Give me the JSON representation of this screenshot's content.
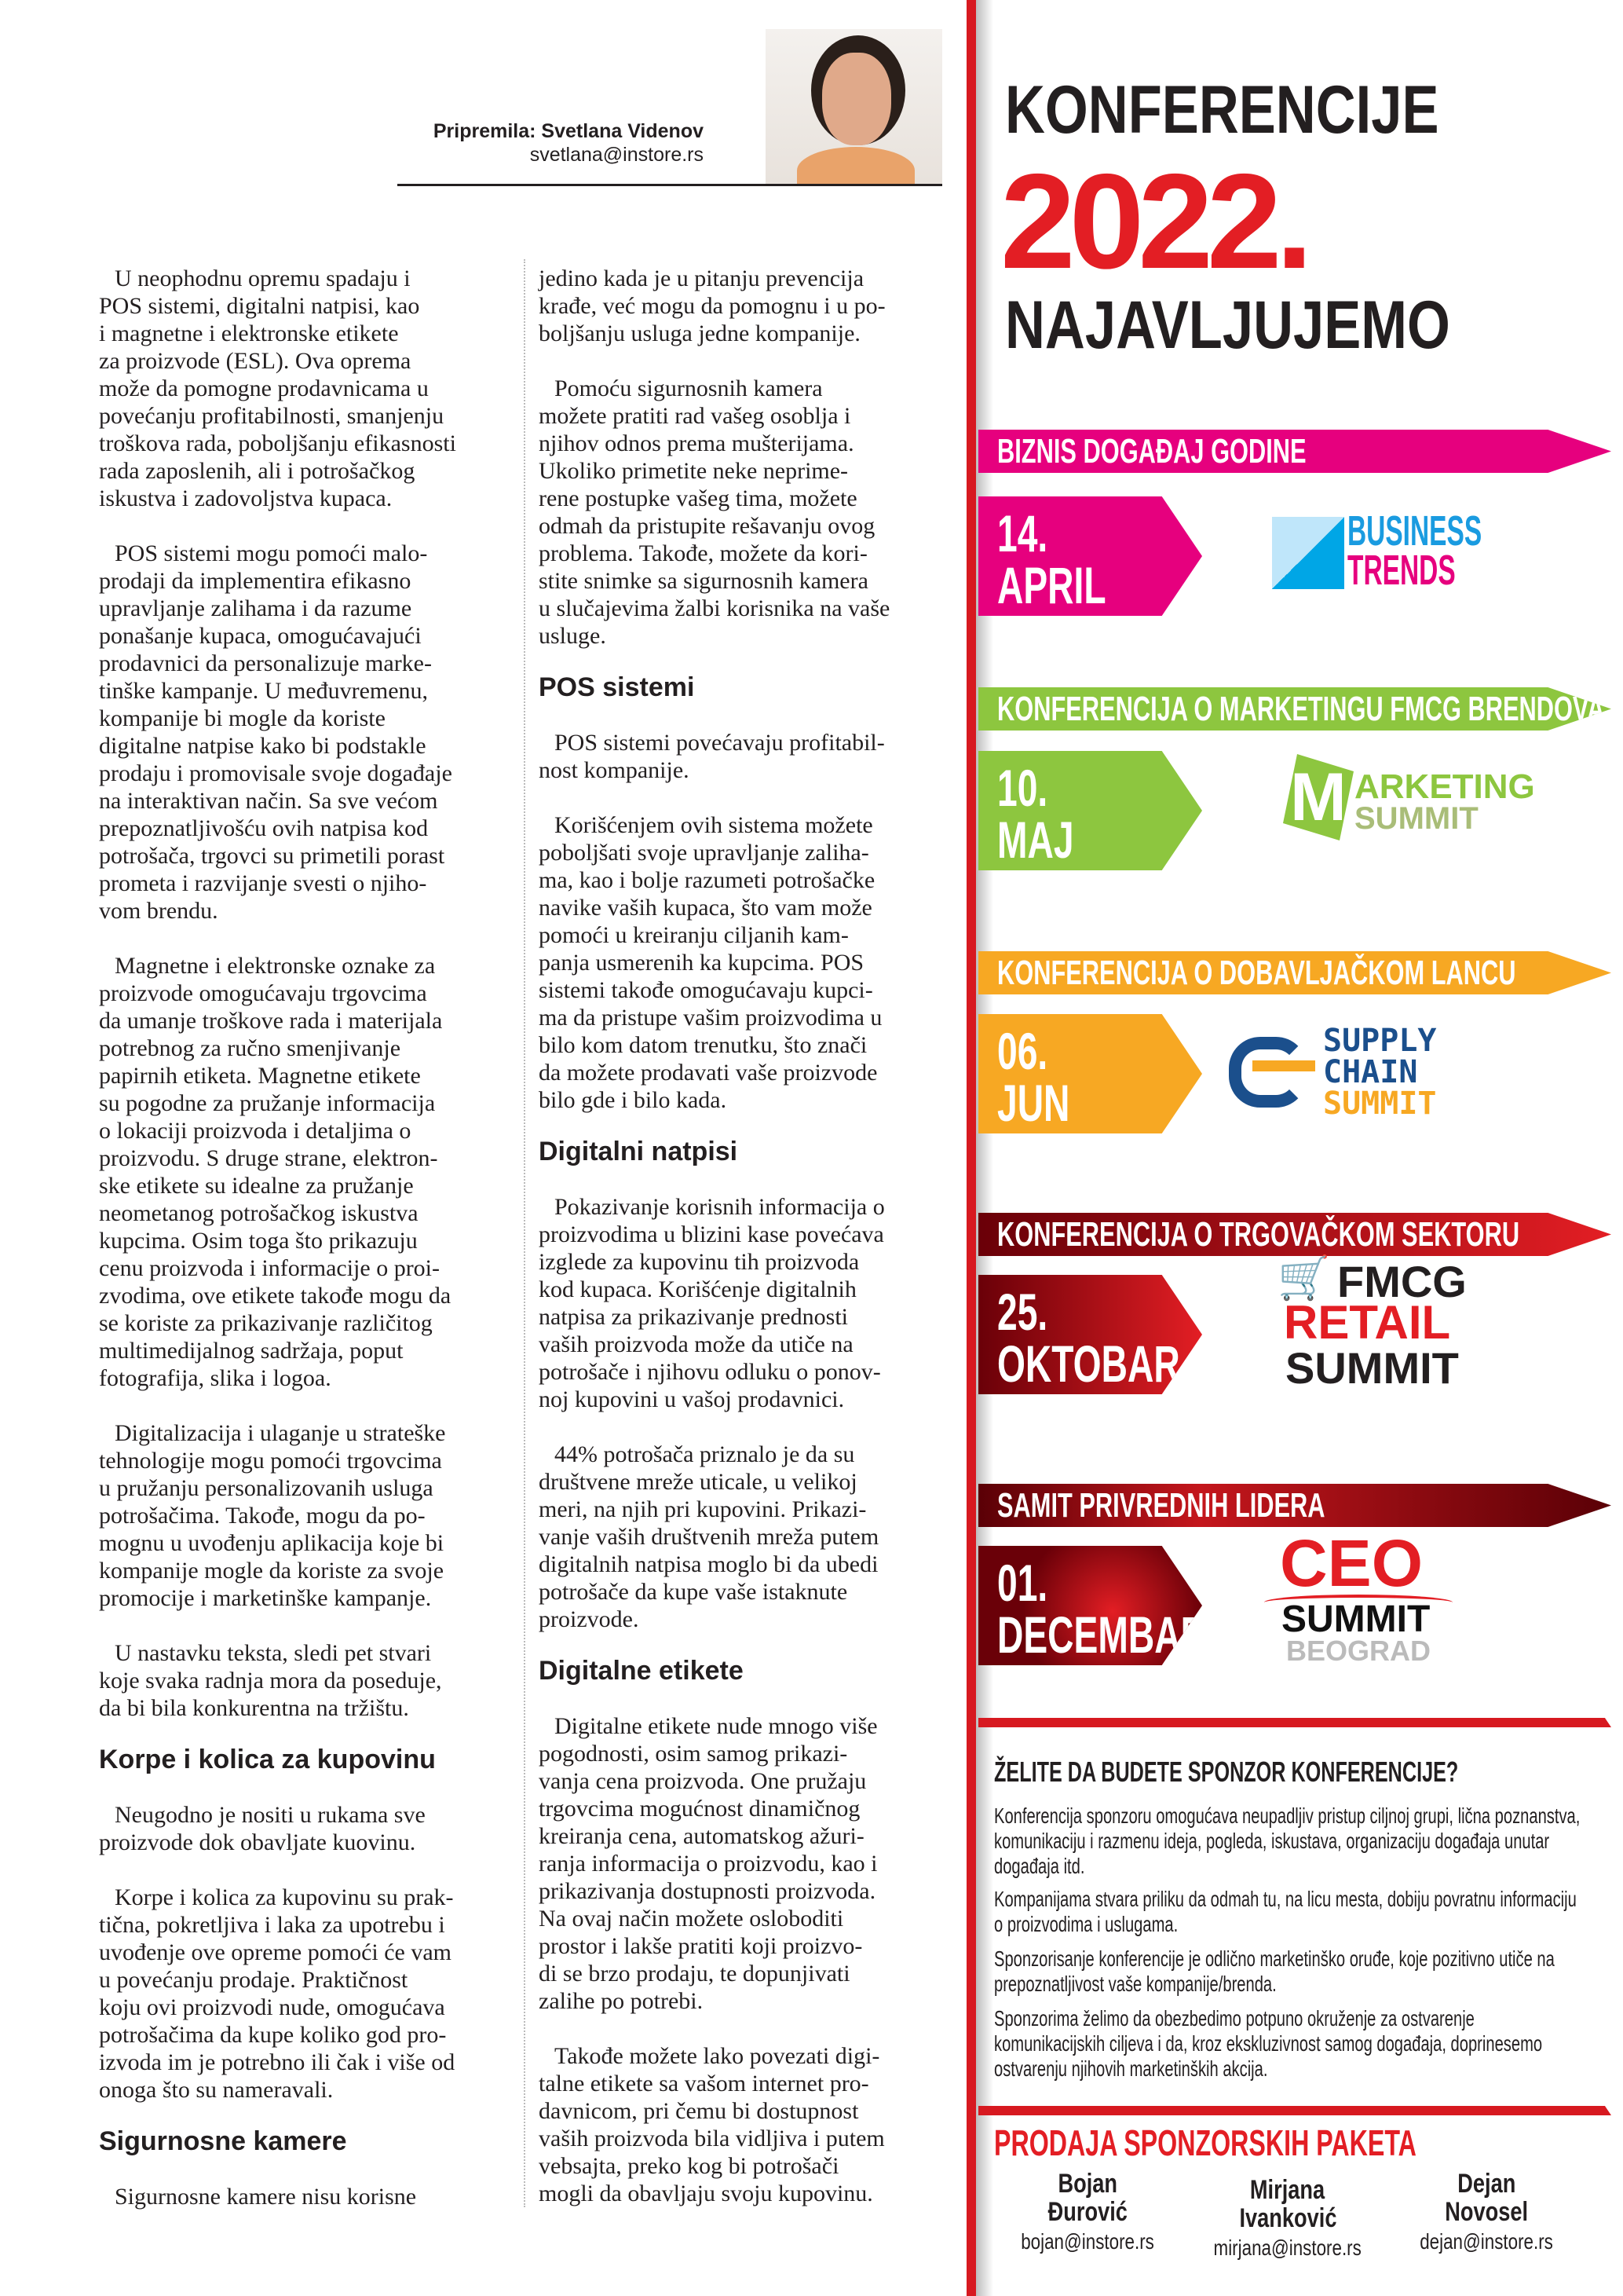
{
  "author": {
    "label": "Pripremila: Svetlana Videnov",
    "email": "svetlana@instore.rs"
  },
  "article": {
    "col1": [
      {
        "type": "p",
        "text": "U neophodnu opremu spadaju i\nPOS sistemi, digitalni natpisi, kao\ni magnetne i elektronske etikete\nza proizvode (ESL). Ova oprema\nmože da pomogne prodavnicama u\npovećanju profitabilnosti, smanjenju\ntroškova rada, poboljšanju efikasnosti\nrada zaposlenih, ali i potrošačkog\niskustva i zadovoljstva kupaca."
      },
      {
        "type": "p",
        "text": "POS sistemi mogu pomoći malo-\nprodaji da implementira efikasno\nupravljanje zalihama i da razume\nponašanje kupaca, omogućavajući\nprodavnici da personalizuje marke-\ntinške kampanje. U međuvremenu,\nkompanije bi mogle da koriste\ndigitalne natpise kako bi podstakle\nprodaju i promovisale svoje događaje\nna interaktivan način. Sa sve većom\nprepoznatljivošću ovih natpisa kod\npotrošača, trgovci su primetili porast\nprometa i razvijanje svesti o njiho-\nvom brendu."
      },
      {
        "type": "p",
        "text": "Magnetne i elektronske oznake za\nproizvode omogućavaju trgovcima\nda umanje troškove rada i materijala\npotrebnog za ručno smenjivanje\npapirnih etiketa. Magnetne etikete\nsu pogodne za pružanje informacija\no lokaciji proizvoda i detaljima o\nproizvodu. S druge strane, elektron-\nske etikete su idealne za pružanje\nneometanog potrošačkog iskustva\nkupcima. Osim toga što prikazuju\ncenu proizvoda i informacije o proi-\nzvodima, ove etikete takođe mogu da\nse koriste za prikazivanje različitog\nmultimedijalnog sadržaja, poput\nfotografija, slika i logoa."
      },
      {
        "type": "p",
        "text": "Digitalizacija i ulaganje u strateške\ntehnologije mogu pomoći trgovcima\nu pružanju personalizovanih usluga\npotrošačima. Takođe, mogu da po-\nmognu u uvođenju aplikacija koje bi\nkompanije mogle da koriste za svoje\npromocije i marketinške kampanje."
      },
      {
        "type": "p",
        "text": "U nastavku teksta, sledi pet stvari\nkoje svaka radnja mora da poseduje,\nda bi bila konkurentna na tržištu."
      },
      {
        "type": "h",
        "text": "Korpe i kolica za kupovinu"
      },
      {
        "type": "p",
        "text": "Neugodno je nositi u rukama sve\nproizvode dok obavljate kuovinu."
      },
      {
        "type": "p",
        "text": "Korpe i kolica za kupovinu su prak-\ntična, pokretljiva i laka za upotrebu i\nuvođenje ove opreme pomoći će vam\nu povećanju prodaje. Praktičnost\nkoju ovi proizvodi nude, omogućava\npotrošačima da kupe koliko god pro-\nizvoda im je potrebno ili čak i više od\nonoga što su nameravali."
      },
      {
        "type": "h",
        "text": "Sigurnosne kamere"
      },
      {
        "type": "p",
        "text": "Sigurnosne kamere nisu korisne"
      }
    ],
    "col2": [
      {
        "type": "p",
        "text": "jedino kada je u pitanju prevencija\nkrađe, već mogu da pomognu i u po-\nboljšanju usluga jedne kompanije."
      },
      {
        "type": "p",
        "text": "Pomoću sigurnosnih kamera\nmožete pratiti rad vašeg osoblja i\nnjihov odnos prema mušterijama.\nUkoliko primetite neke neprime-\nrene postupke vašeg tima, možete\nodmah da pristupite rešavanju ovog\nproblema. Takođe, možete da kori-\nstite snimke sa sigurnosnih kamera\nu slučajevima žalbi korisnika na vaše\nusluge."
      },
      {
        "type": "h",
        "text": "POS sistemi"
      },
      {
        "type": "p",
        "text": "POS sistemi povećavaju profitabil-\nnost kompanije."
      },
      {
        "type": "p",
        "text": "Korišćenjem ovih sistema možete\npoboljšati svoje upravljanje zaliha-\nma, kao i bolje razumeti potrošačke\nnavike vaših kupaca, što vam može\npomoći u kreiranju ciljanih kam-\npanja usmerenih ka kupcima. POS\nsistemi takođe omogućavaju kupci-\nma da pristupe vašim proizvodima u\nbilo kom datom trenutku, što znači\nda možete prodavati vaše proizvode\nbilo gde i bilo kada."
      },
      {
        "type": "h",
        "text": "Digitalni natpisi"
      },
      {
        "type": "p",
        "text": "Pokazivanje korisnih informacija o\nproizvodima u blizini kase povećava\nizglede za kupovinu tih proizvoda\nkod kupaca. Korišćenje digitalnih\nnatpisa za prikazivanje prednosti\nvaših proizvoda može da utiče na\npotrošače i njihovu odluku o ponov-\nnoj kupovini u vašoj prodavnici."
      },
      {
        "type": "p",
        "text": "44% potrošača priznalo je da su\ndruštvene mreže uticale, u velikoj\nmeri, na njih pri kupovini. Prikazi-\nvanje vaših društvenih mreža putem\ndigitalnih natpisa moglo bi da ubedi\npotrošače da kupe vaše istaknute\nproizvode."
      },
      {
        "type": "h",
        "text": "Digitalne etikete"
      },
      {
        "type": "p",
        "text": "Digitalne etikete nude mnogo više\npogodnosti, osim samog prikazi-\nvanja cena proizvoda. One pružaju\ntrgovcima mogućnost dinamičnog\nkreiranja cena, automatskog ažuri-\nranja informacija o proizvodu, kao i\nprikazivanja dostupnosti proizvoda.\nNa ovaj način možete osloboditi\nprostor i lakše pratiti koji proizvo-\ndi se brzo prodaju, te dopunjivati\nzalihe po potrebi."
      },
      {
        "type": "p",
        "text": "Takođe možete lako povezati digi-\ntalne etikete sa vašom internet pro-\ndavnicom, pri čemu bi dostupnost\nvaših proizvoda bila vidljiva i putem\nvebsajta, preko kog bi potrošači\nmogli da obavljaju svoju kupovinu."
      }
    ]
  },
  "sidebar": {
    "title1": "KONFERENCIJE",
    "year": "2022.",
    "title2": "NAJAVLJUJEMO",
    "events": [
      {
        "category": "BIZNIS DOGAĐAJ GODINE",
        "day": "14.",
        "month": "APRIL",
        "color": "#e6007e",
        "logo": [
          "BUSINESS",
          "TRENDS"
        ]
      },
      {
        "category": "KONFERENCIJA O MARKETINGU FMCG BRENDOVA",
        "day": "10.",
        "month": "MAJ",
        "color": "#8dc63f",
        "logo": [
          "ARKETING",
          "SUMMIT"
        ]
      },
      {
        "category": "KONFERENCIJA O DOBAVLJAČKOM LANCU",
        "day": "06.",
        "month": "JUN",
        "color": "#f7a823",
        "logo": [
          "SUPPLY",
          "CHAIN",
          "SUMMIT"
        ]
      },
      {
        "category": "KONFERENCIJA O TRGOVAČKOM SEKTORU",
        "day": "25.",
        "month": "OKTOBAR",
        "color": "#d71920",
        "logo": [
          "FMCG",
          "RETAIL",
          "SUMMIT"
        ]
      },
      {
        "category": "SAMIT PRIVREDNIH LIDERA",
        "day": "01.",
        "month": "DECEMBAR",
        "color": "#8b0a12",
        "logo": [
          "CEO",
          "SUMMIT",
          "BEOGRAD"
        ]
      }
    ],
    "sponsor": {
      "heading": "ŽELITE DA BUDETE SPONZOR KONFERENCIJE?",
      "paragraphs": [
        "Konferencija sponzoru omogućava neupadljiv pristup ciljnoj grupi, lična poznanstva,\nkomunikaciju i razmenu ideja, pogleda, iskustava, organizaciju događaja unutar\ndogađaja itd.",
        "Kompanijama stvara priliku da odmah tu, na licu mesta, dobiju povratnu informaciju\no proizvodima i uslugama.",
        "Sponzorisanje konferencije je odlično marketinško oruđe, koje pozitivno utiče na\nprepoznatljivost vaše kompanije/brenda.",
        "Sponzorima želimo da obezbedimo potpuno okruženje za ostvarenje\nkomunikacijskih ciljeva i da, kroz ekskluzivnost samog događaja, doprinesemo\nostvarenju njihovih marketinških akcija."
      ]
    },
    "sales": {
      "heading": "PRODAJA SPONZORSKIH PAKETA",
      "contacts": [
        {
          "first": "Bojan",
          "last": "Đurović",
          "email": "bojan@instore.rs"
        },
        {
          "first": "Mirjana",
          "last": "Ivanković",
          "email": "mirjana@instore.rs"
        },
        {
          "first": "Dejan",
          "last": "Novosel",
          "email": "dejan@instore.rs"
        }
      ]
    }
  }
}
